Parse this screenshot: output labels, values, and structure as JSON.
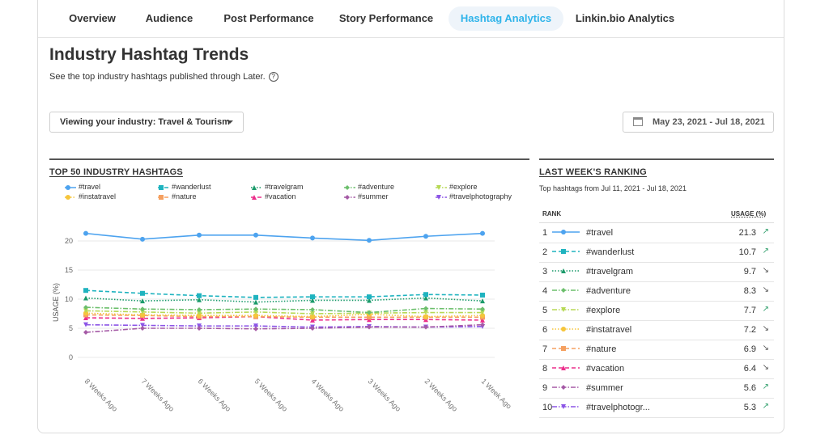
{
  "tabs": [
    {
      "label": "Overview",
      "active": false
    },
    {
      "label": "Audience",
      "active": false
    },
    {
      "label": "Post Performance",
      "active": false
    },
    {
      "label": "Story Performance",
      "active": false
    },
    {
      "label": "Hashtag Analytics",
      "active": true
    },
    {
      "label": "Linkin.bio Analytics",
      "active": false
    }
  ],
  "page": {
    "title": "Industry Hashtag Trends",
    "subtitle": "See the top industry hashtags published through Later.",
    "help_glyph": "?"
  },
  "filters": {
    "industry_label": "Viewing your industry: Travel & Tourism",
    "date_range": "May 23, 2021 - Jul 18, 2021"
  },
  "chart_section": {
    "title": "TOP 50 INDUSTRY HASHTAGS"
  },
  "ranking": {
    "title": "LAST WEEK'S RANKING",
    "subtitle": "Top hashtags from Jul 11, 2021 - Jul 18, 2021",
    "col_rank": "RANK",
    "col_usage": "USAGE (%)",
    "rows": [
      {
        "rank": "1",
        "tag": "#travel",
        "usage": "21.3",
        "trend": "up"
      },
      {
        "rank": "2",
        "tag": "#wanderlust",
        "usage": "10.7",
        "trend": "up"
      },
      {
        "rank": "3",
        "tag": "#travelgram",
        "usage": "9.7",
        "trend": "down"
      },
      {
        "rank": "4",
        "tag": "#adventure",
        "usage": "8.3",
        "trend": "down"
      },
      {
        "rank": "5",
        "tag": "#explore",
        "usage": "7.7",
        "trend": "up"
      },
      {
        "rank": "6",
        "tag": "#instatravel",
        "usage": "7.2",
        "trend": "down"
      },
      {
        "rank": "7",
        "tag": "#nature",
        "usage": "6.9",
        "trend": "down"
      },
      {
        "rank": "8",
        "tag": "#vacation",
        "usage": "6.4",
        "trend": "down"
      },
      {
        "rank": "9",
        "tag": "#summer",
        "usage": "5.6",
        "trend": "up"
      },
      {
        "rank": "10",
        "tag": "#travelphotogr...",
        "usage": "5.3",
        "trend": "up"
      }
    ],
    "trend_glyphs": {
      "up": "↗",
      "down": "↘"
    }
  },
  "colors": {
    "travel": "#4da3ef",
    "wanderlust": "#1fb3bf",
    "travelgram": "#1a9a6a",
    "adventure": "#6cbf6c",
    "explore": "#b7d955",
    "instatravel": "#f6c53b",
    "nature": "#f5a060",
    "vacation": "#ec2f8b",
    "summer": "#a55aa6",
    "travelphotography": "#8c55e6",
    "accent": "#2fb4ea"
  },
  "chart_data": {
    "type": "line",
    "title": "",
    "xlabel": "",
    "ylabel": "USAGE (%)",
    "x": [
      "8 Weeks Ago",
      "7 Weeks Ago",
      "6 Weeks Ago",
      "5 Weeks Ago",
      "4 Weeks Ago",
      "3 Weeks Ago",
      "2 Weeks Ago",
      "1 Week Ago"
    ],
    "ylim": [
      0,
      25
    ],
    "yticks": [
      0,
      5,
      10,
      15,
      20
    ],
    "grid": true,
    "legend": "top",
    "series": [
      {
        "name": "#travel",
        "color": "#4da3ef",
        "marker": "circle",
        "dash": "solid",
        "values": [
          21.3,
          20.3,
          21.0,
          21.0,
          20.5,
          20.1,
          20.8,
          21.3
        ]
      },
      {
        "name": "#wanderlust",
        "color": "#1fb3bf",
        "marker": "square",
        "dash": "dashed",
        "values": [
          11.5,
          11.0,
          10.6,
          10.3,
          10.4,
          10.4,
          10.8,
          10.7
        ]
      },
      {
        "name": "#travelgram",
        "color": "#1a9a6a",
        "marker": "triangle",
        "dash": "dotted",
        "values": [
          10.2,
          9.7,
          9.9,
          9.5,
          9.8,
          9.8,
          10.2,
          9.7
        ]
      },
      {
        "name": "#adventure",
        "color": "#6cbf6c",
        "marker": "diamond",
        "dash": "dashdot",
        "values": [
          8.6,
          8.3,
          8.2,
          8.3,
          8.2,
          7.7,
          8.4,
          8.3
        ]
      },
      {
        "name": "#explore",
        "color": "#b7d955",
        "marker": "triangle-down",
        "dash": "dashdot",
        "values": [
          8.0,
          7.8,
          7.6,
          7.8,
          7.5,
          7.6,
          7.7,
          7.7
        ]
      },
      {
        "name": "#instatravel",
        "color": "#f6c53b",
        "marker": "circle",
        "dash": "dotted",
        "values": [
          7.6,
          7.3,
          7.2,
          7.2,
          7.0,
          7.4,
          7.0,
          7.2
        ]
      },
      {
        "name": "#nature",
        "color": "#f5a060",
        "marker": "square",
        "dash": "dashed",
        "values": [
          7.3,
          7.2,
          7.0,
          7.0,
          6.9,
          6.9,
          6.9,
          6.9
        ]
      },
      {
        "name": "#vacation",
        "color": "#ec2f8b",
        "marker": "triangle",
        "dash": "dashed",
        "values": [
          6.8,
          6.7,
          6.8,
          7.0,
          6.4,
          6.5,
          6.5,
          6.4
        ]
      },
      {
        "name": "#summer",
        "color": "#a55aa6",
        "marker": "diamond",
        "dash": "dashdot",
        "values": [
          4.3,
          5.0,
          5.0,
          4.9,
          5.0,
          5.2,
          5.2,
          5.6
        ]
      },
      {
        "name": "#travelphotography",
        "color": "#8c55e6",
        "marker": "triangle-down",
        "dash": "dashdot",
        "values": [
          5.6,
          5.5,
          5.4,
          5.4,
          5.2,
          5.3,
          5.2,
          5.3
        ]
      }
    ]
  }
}
